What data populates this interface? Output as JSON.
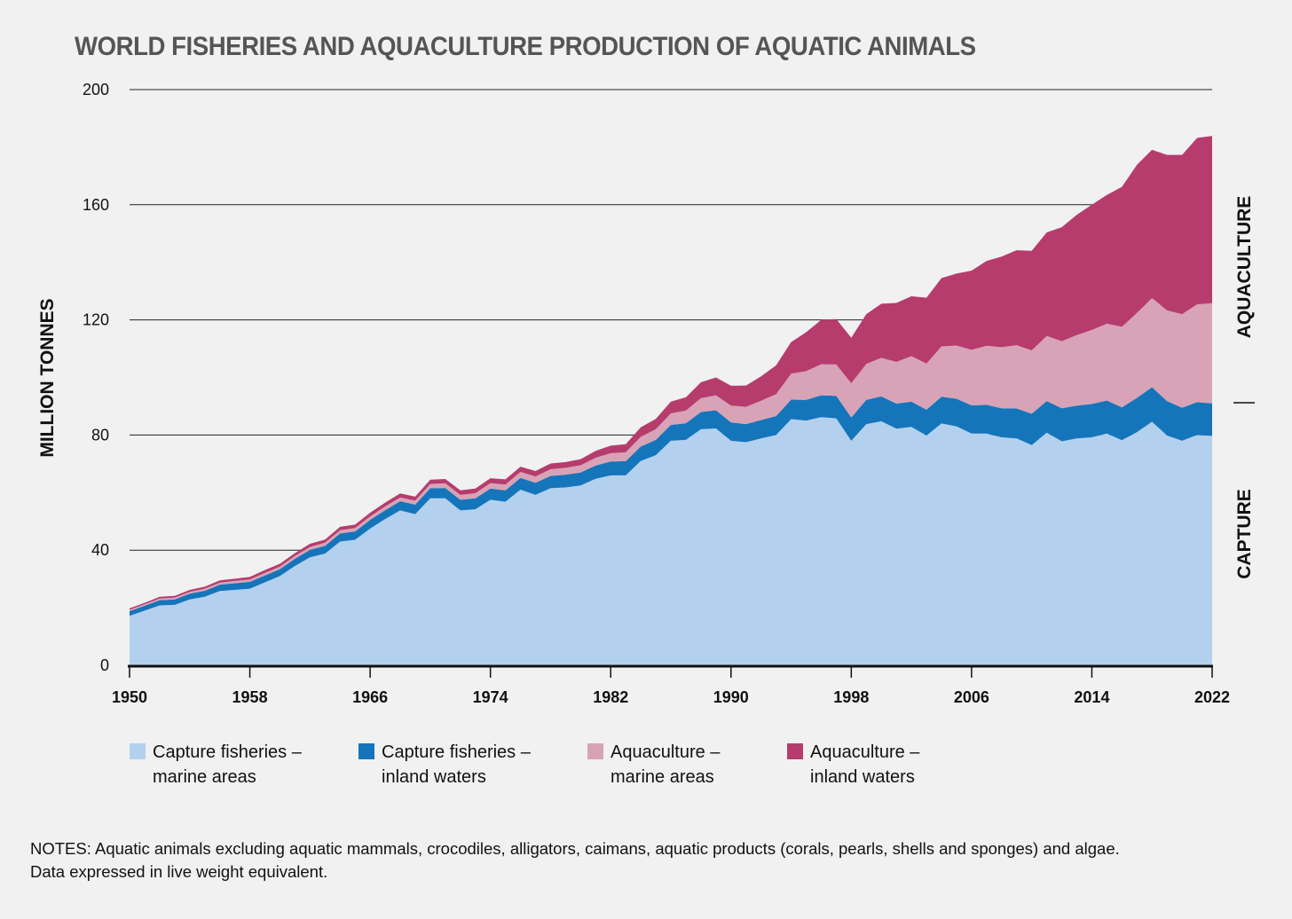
{
  "chart_data": {
    "type": "area",
    "stacked": true,
    "title": "WORLD FISHERIES AND AQUACULTURE PRODUCTION OF AQUATIC ANIMALS",
    "ylabel": "MILLION TONNES",
    "xlabel": "",
    "ylim": [
      0,
      200
    ],
    "xlim": [
      1950,
      2022
    ],
    "y_ticks": [
      0,
      40,
      80,
      120,
      160,
      200
    ],
    "x_ticks": [
      1950,
      1958,
      1966,
      1974,
      1982,
      1990,
      1998,
      2006,
      2014,
      2022
    ],
    "grid": "horizontal",
    "side_labels": [
      "CAPTURE",
      "AQUACULTURE"
    ],
    "legend_position": "bottom",
    "x": [
      1950,
      1951,
      1952,
      1953,
      1954,
      1955,
      1956,
      1957,
      1958,
      1959,
      1960,
      1961,
      1962,
      1963,
      1964,
      1965,
      1966,
      1967,
      1968,
      1969,
      1970,
      1971,
      1972,
      1973,
      1974,
      1975,
      1976,
      1977,
      1978,
      1979,
      1980,
      1981,
      1982,
      1983,
      1984,
      1985,
      1986,
      1987,
      1988,
      1989,
      1990,
      1991,
      1992,
      1993,
      1994,
      1995,
      1996,
      1997,
      1998,
      1999,
      2000,
      2001,
      2002,
      2003,
      2004,
      2005,
      2006,
      2007,
      2008,
      2009,
      2010,
      2011,
      2012,
      2013,
      2014,
      2015,
      2016,
      2017,
      2018,
      2019,
      2020,
      2021,
      2022
    ],
    "series": [
      {
        "name": "Capture fisheries – marine areas",
        "color": "#b3d1ee",
        "values": [
          17.2,
          19.0,
          20.8,
          21.0,
          22.9,
          23.8,
          25.8,
          26.2,
          26.6,
          28.8,
          31.0,
          34.5,
          37.5,
          38.8,
          43.0,
          43.6,
          47.5,
          50.8,
          53.8,
          52.5,
          58.0,
          58.0,
          53.8,
          54.2,
          57.5,
          56.8,
          61.0,
          59.2,
          61.5,
          61.8,
          62.5,
          64.8,
          66.0,
          66.0,
          71.0,
          73.0,
          78.0,
          78.3,
          82.0,
          82.3,
          78.0,
          77.5,
          78.8,
          80.0,
          85.5,
          85.0,
          86.2,
          85.8,
          78.0,
          83.8,
          84.8,
          82.2,
          82.8,
          79.8,
          84.0,
          83.0,
          80.5,
          80.5,
          79.2,
          78.8,
          76.5,
          80.8,
          77.8,
          78.8,
          79.2,
          80.5,
          78.2,
          81.0,
          84.6,
          79.8,
          78.0,
          80.0,
          79.7
        ]
      },
      {
        "name": "Capture fisheries – inland waters",
        "color": "#1575bb",
        "values": [
          1.6,
          1.7,
          1.8,
          1.9,
          2.0,
          2.1,
          2.2,
          2.3,
          2.4,
          2.4,
          2.4,
          2.5,
          2.6,
          2.7,
          2.8,
          2.9,
          3.0,
          3.1,
          3.2,
          3.3,
          3.5,
          3.6,
          3.7,
          3.8,
          3.9,
          4.0,
          4.1,
          4.2,
          4.3,
          4.4,
          4.5,
          4.6,
          4.8,
          4.9,
          5.0,
          5.3,
          5.5,
          5.8,
          6.0,
          6.3,
          6.4,
          6.3,
          6.4,
          6.6,
          6.8,
          7.2,
          7.6,
          7.8,
          8.1,
          8.4,
          8.6,
          8.7,
          8.8,
          9.0,
          9.3,
          9.6,
          9.8,
          10.0,
          10.1,
          10.4,
          10.9,
          11.0,
          11.5,
          11.4,
          11.6,
          11.5,
          11.4,
          11.9,
          12.0,
          12.0,
          11.5,
          11.4,
          11.3
        ]
      },
      {
        "name": "Aquaculture – marine areas",
        "color": "#d8a3b6",
        "values": [
          0.5,
          0.5,
          0.6,
          0.6,
          0.6,
          0.7,
          0.7,
          0.8,
          0.8,
          0.9,
          0.9,
          1.0,
          1.0,
          1.1,
          1.1,
          1.2,
          1.2,
          1.3,
          1.3,
          1.4,
          1.5,
          1.6,
          1.7,
          1.8,
          1.9,
          2.0,
          2.1,
          2.2,
          2.3,
          2.4,
          2.5,
          2.7,
          2.9,
          3.1,
          3.4,
          3.7,
          4.0,
          4.4,
          4.8,
          5.2,
          5.8,
          6.0,
          6.7,
          7.6,
          9.0,
          10.0,
          10.8,
          10.9,
          11.9,
          12.5,
          13.4,
          14.5,
          15.8,
          16.0,
          17.5,
          18.5,
          19.3,
          20.5,
          21.2,
          22.0,
          22.0,
          22.6,
          23.3,
          24.5,
          25.7,
          26.7,
          28.0,
          29.5,
          31.0,
          31.5,
          32.5,
          34.0,
          34.8
        ]
      },
      {
        "name": "Aquaculture – inland waters",
        "color": "#b63c6d",
        "values": [
          0.5,
          0.5,
          0.6,
          0.6,
          0.7,
          0.7,
          0.8,
          0.8,
          0.9,
          1.0,
          1.0,
          1.0,
          1.1,
          1.1,
          1.2,
          1.2,
          1.3,
          1.3,
          1.4,
          1.4,
          1.5,
          1.5,
          1.6,
          1.6,
          1.7,
          1.8,
          1.8,
          1.9,
          2.0,
          2.0,
          2.1,
          2.4,
          2.6,
          2.8,
          3.3,
          3.6,
          4.1,
          4.6,
          5.5,
          6.2,
          6.9,
          7.4,
          8.5,
          10.0,
          11.0,
          13.5,
          15.4,
          15.8,
          15.8,
          17.3,
          18.8,
          20.5,
          20.8,
          22.9,
          23.7,
          25.0,
          27.5,
          29.5,
          31.5,
          33.0,
          34.6,
          36.0,
          39.6,
          41.8,
          43.5,
          44.7,
          48.6,
          51.5,
          51.5,
          54.0,
          55.3,
          57.8,
          58.1
        ]
      }
    ],
    "legend": [
      {
        "line1": "Capture fisheries –",
        "line2": "marine areas",
        "color": "#b3d1ee"
      },
      {
        "line1": "Capture fisheries –",
        "line2": "inland waters",
        "color": "#1575bb"
      },
      {
        "line1": "Aquaculture –",
        "line2": "marine areas",
        "color": "#d8a3b6"
      },
      {
        "line1": "Aquaculture –",
        "line2": "inland waters",
        "color": "#b63c6d"
      }
    ]
  },
  "notes": {
    "line1": "NOTES: Aquatic animals excluding aquatic mammals, crocodiles, alligators, caimans, aquatic products (corals, pearls, shells and sponges) and algae.",
    "line2": "Data expressed in live weight equivalent."
  }
}
